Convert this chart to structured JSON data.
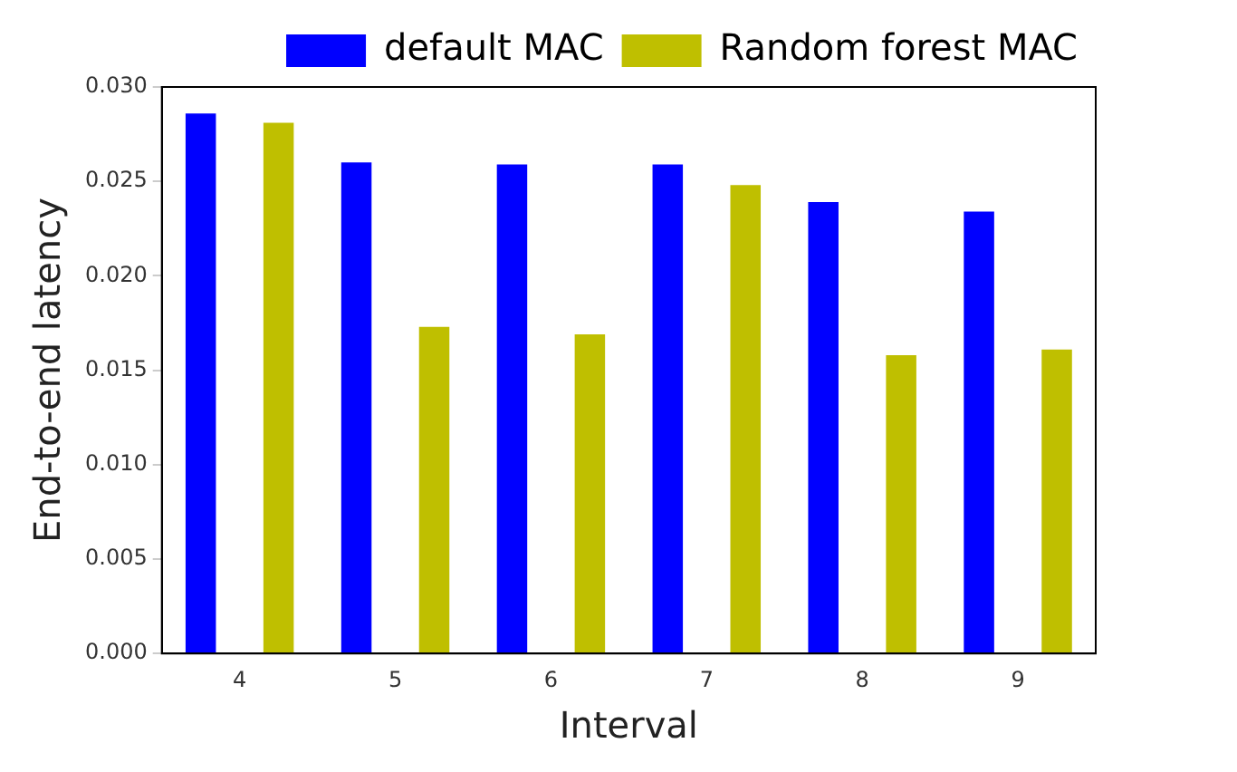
{
  "chart_data": {
    "type": "bar",
    "xlabel": "Interval",
    "ylabel": "End-to-end latency",
    "categories": [
      "4",
      "5",
      "6",
      "7",
      "8",
      "9"
    ],
    "series": [
      {
        "name": "default MAC",
        "color": "#0000ff",
        "values": [
          0.0286,
          0.026,
          0.0259,
          0.0259,
          0.0239,
          0.0234
        ]
      },
      {
        "name": "Random forest MAC",
        "color": "#bfbf00",
        "values": [
          0.0281,
          0.0173,
          0.0169,
          0.0248,
          0.0158,
          0.0161
        ]
      }
    ],
    "ylim": [
      0,
      0.03
    ],
    "yticks": [
      {
        "value": 0,
        "label": "0.000"
      },
      {
        "value": 0.005,
        "label": "0.005"
      },
      {
        "value": 0.01,
        "label": "0.010"
      },
      {
        "value": 0.015,
        "label": "0.015"
      },
      {
        "value": 0.02,
        "label": "0.020"
      },
      {
        "value": 0.025,
        "label": "0.025"
      },
      {
        "value": 0.03,
        "label": "0.030"
      }
    ],
    "grid": false,
    "legend": "top right"
  }
}
